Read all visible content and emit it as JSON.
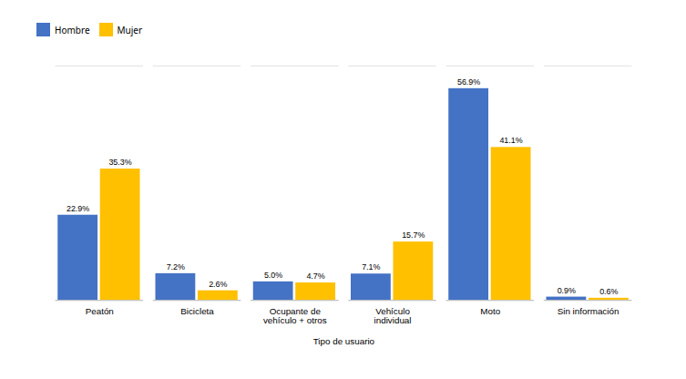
{
  "chart_data": {
    "type": "bar",
    "xlabel": "Tipo de usuario",
    "categories": [
      "Peatón",
      "Bicicleta",
      "Ocupante de\nvehículo + otros",
      "Vehículo\nindividual",
      "Moto",
      "Sin información"
    ],
    "series": [
      {
        "name": "Hombre",
        "color": "#4472C4",
        "values": [
          22.9,
          7.2,
          5.0,
          7.1,
          56.9,
          0.9
        ],
        "value_labels": [
          "22.9%",
          "7.2%",
          "5.0%",
          "7.1%",
          "56.9%",
          "0.9%"
        ]
      },
      {
        "name": "Mujer",
        "color": "#FFC000",
        "values": [
          35.3,
          2.6,
          4.7,
          15.7,
          41.1,
          0.6
        ],
        "value_labels": [
          "35.3%",
          "2.6%",
          "4.7%",
          "15.7%",
          "41.1%",
          "0.6%"
        ]
      }
    ],
    "ylim": [
      0,
      63
    ],
    "grid": false,
    "legend": "top",
    "data_labels": true,
    "tick_labels": "x"
  }
}
